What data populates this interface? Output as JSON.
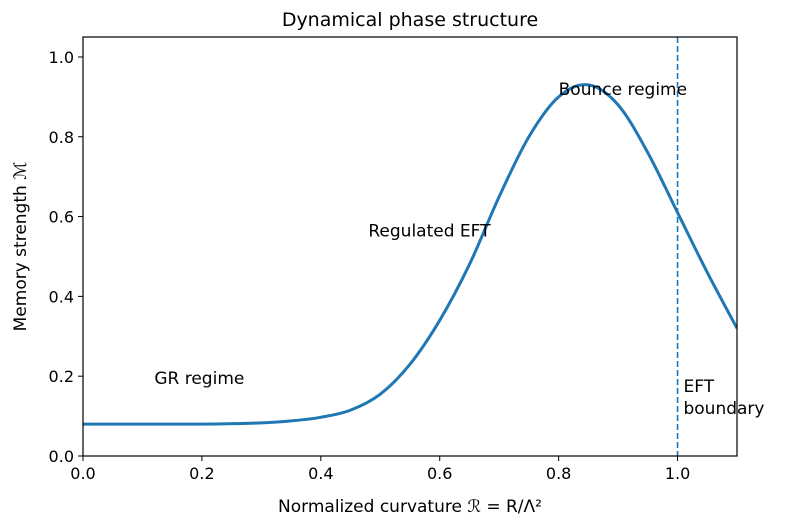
{
  "chart_data": {
    "type": "line",
    "title": "Dynamical phase structure",
    "xlabel": "Normalized curvature ℛ = R/Λ²",
    "ylabel": "Memory strength ℳ",
    "xlim": [
      0.0,
      1.1
    ],
    "ylim": [
      0.0,
      1.05
    ],
    "xticks": [
      "0.0",
      "0.2",
      "0.4",
      "0.6",
      "0.8",
      "1.0"
    ],
    "yticks": [
      "0.0",
      "0.2",
      "0.4",
      "0.6",
      "0.8",
      "1.0"
    ],
    "grid": false,
    "series": [
      {
        "color": "#1f77b4",
        "x": [
          0.0,
          0.1,
          0.2,
          0.25,
          0.3,
          0.35,
          0.4,
          0.45,
          0.5,
          0.55,
          0.6,
          0.65,
          0.7,
          0.75,
          0.8,
          0.85,
          0.9,
          0.95,
          1.0,
          1.05,
          1.1
        ],
        "y": [
          0.08,
          0.08,
          0.08,
          0.081,
          0.083,
          0.088,
          0.097,
          0.115,
          0.155,
          0.23,
          0.34,
          0.48,
          0.65,
          0.8,
          0.9,
          0.93,
          0.88,
          0.76,
          0.61,
          0.46,
          0.32
        ]
      }
    ],
    "vline": {
      "x": 1.0,
      "style": "dashed",
      "color": "#1f77b4"
    },
    "annotations": [
      {
        "text": "GR regime",
        "x": 0.12,
        "y": 0.18
      },
      {
        "text": "Regulated EFT",
        "x": 0.48,
        "y": 0.55
      },
      {
        "text": "Bounce regime",
        "x": 0.8,
        "y": 0.905
      },
      {
        "text": "EFT",
        "x": 1.01,
        "y": 0.16
      },
      {
        "text": "boundary",
        "x": 1.01,
        "y": 0.105
      }
    ]
  }
}
